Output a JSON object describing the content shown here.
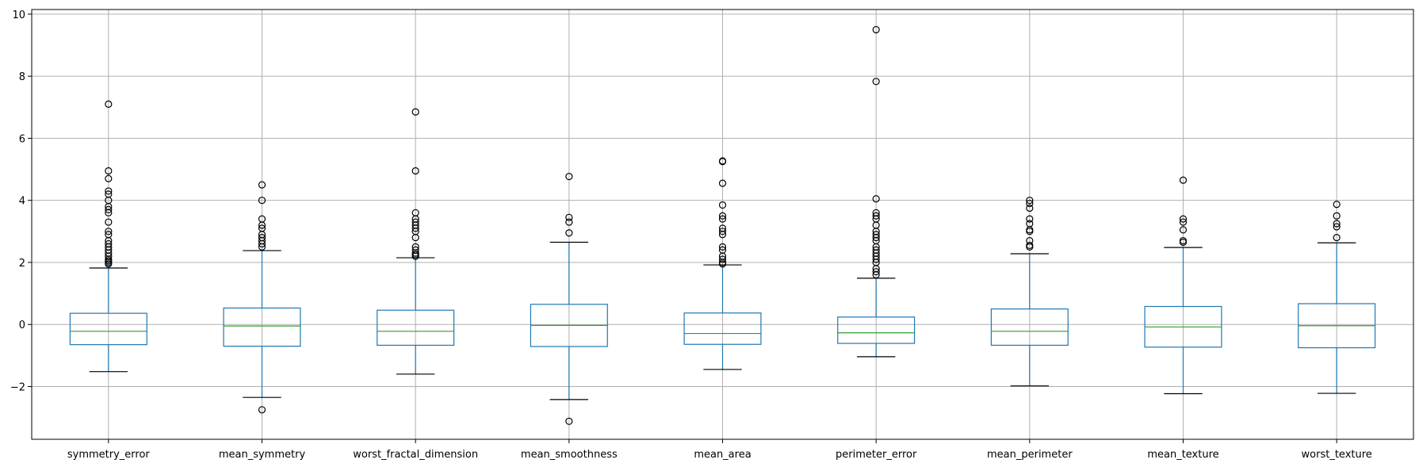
{
  "chart_data": {
    "type": "box",
    "title": "",
    "xlabel": "",
    "ylabel": "",
    "ylim": [
      -3.7,
      10.15
    ],
    "yticks": [
      -2,
      0,
      2,
      4,
      6,
      8,
      10
    ],
    "ytick_labels": [
      "−2",
      "0",
      "2",
      "4",
      "6",
      "8",
      "10"
    ],
    "grid": true,
    "colors": {
      "box": "#1f77b4",
      "median": "#2ca02c",
      "whisker_cap": "#000000",
      "outlier": "#000000",
      "grid": "#b0b0b0"
    },
    "categories": [
      "symmetry_error",
      "mean_symmetry",
      "worst_fractal_dimension",
      "mean_smoothness",
      "mean_area",
      "perimeter_error",
      "mean_perimeter",
      "mean_texture",
      "worst_texture"
    ],
    "boxes": [
      {
        "name": "symmetry_error",
        "whisker_low": -1.52,
        "q1": -0.65,
        "median": -0.22,
        "q3": 0.36,
        "whisker_high": 1.82,
        "outliers": [
          1.95,
          2.0,
          2.05,
          2.1,
          2.2,
          2.3,
          2.4,
          2.5,
          2.6,
          2.7,
          2.9,
          3.0,
          3.3,
          3.6,
          3.7,
          3.8,
          4.0,
          4.2,
          4.3,
          4.7,
          4.95,
          7.1
        ]
      },
      {
        "name": "mean_symmetry",
        "whisker_low": -2.35,
        "q1": -0.7,
        "median": -0.05,
        "q3": 0.53,
        "whisker_high": 2.38,
        "outliers": [
          -2.75,
          2.5,
          2.6,
          2.7,
          2.8,
          2.9,
          3.1,
          3.2,
          3.4,
          4.0,
          4.5
        ]
      },
      {
        "name": "worst_fractal_dimension",
        "whisker_low": -1.6,
        "q1": -0.67,
        "median": -0.22,
        "q3": 0.46,
        "whisker_high": 2.15,
        "outliers": [
          2.2,
          2.25,
          2.3,
          2.4,
          2.5,
          2.8,
          3.0,
          3.1,
          3.2,
          3.3,
          3.4,
          3.6,
          4.95,
          6.85
        ]
      },
      {
        "name": "mean_smoothness",
        "whisker_low": -2.42,
        "q1": -0.71,
        "median": -0.03,
        "q3": 0.65,
        "whisker_high": 2.65,
        "outliers": [
          -3.12,
          2.95,
          3.3,
          3.45,
          4.77
        ]
      },
      {
        "name": "mean_area",
        "whisker_low": -1.45,
        "q1": -0.64,
        "median": -0.29,
        "q3": 0.37,
        "whisker_high": 1.92,
        "outliers": [
          1.95,
          2.0,
          2.1,
          2.2,
          2.4,
          2.5,
          2.9,
          3.0,
          3.1,
          3.4,
          3.5,
          3.85,
          4.55,
          5.25,
          5.27
        ]
      },
      {
        "name": "perimeter_error",
        "whisker_low": -1.04,
        "q1": -0.61,
        "median": -0.27,
        "q3": 0.24,
        "whisker_high": 1.49,
        "outliers": [
          1.6,
          1.7,
          1.8,
          2.0,
          2.1,
          2.2,
          2.3,
          2.4,
          2.5,
          2.7,
          2.8,
          2.9,
          3.0,
          3.2,
          3.4,
          3.5,
          3.6,
          4.05,
          7.83,
          9.5
        ]
      },
      {
        "name": "mean_perimeter",
        "whisker_low": -1.98,
        "q1": -0.67,
        "median": -0.22,
        "q3": 0.5,
        "whisker_high": 2.28,
        "outliers": [
          2.5,
          2.55,
          2.7,
          3.0,
          3.05,
          3.25,
          3.4,
          3.75,
          3.9,
          4.0
        ]
      },
      {
        "name": "mean_texture",
        "whisker_low": -2.23,
        "q1": -0.73,
        "median": -0.08,
        "q3": 0.58,
        "whisker_high": 2.48,
        "outliers": [
          2.65,
          2.7,
          3.05,
          3.3,
          3.4,
          4.65
        ]
      },
      {
        "name": "worst_texture",
        "whisker_low": -2.22,
        "q1": -0.75,
        "median": -0.04,
        "q3": 0.67,
        "whisker_high": 2.63,
        "outliers": [
          2.8,
          3.15,
          3.25,
          3.5,
          3.87
        ]
      }
    ]
  }
}
